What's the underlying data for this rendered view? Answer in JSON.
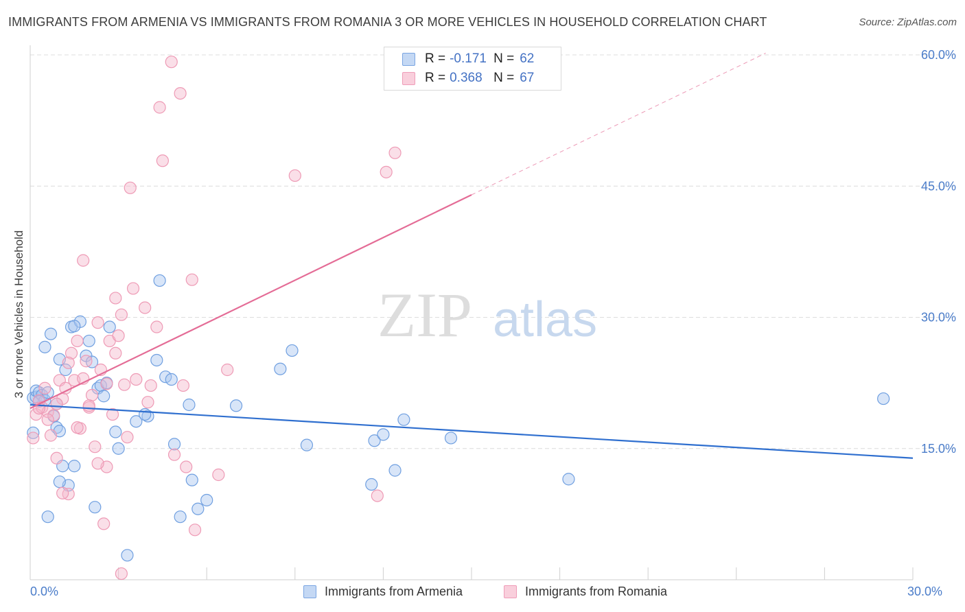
{
  "header": {
    "title": "IMMIGRANTS FROM ARMENIA VS IMMIGRANTS FROM ROMANIA 3 OR MORE VEHICLES IN HOUSEHOLD CORRELATION CHART",
    "source": "Source: ZipAtlas.com"
  },
  "legend": {
    "r_label": "R =",
    "n_label": "N =",
    "series": [
      {
        "name": "Immigrants from Armenia",
        "r": "-0.171",
        "n": "62"
      },
      {
        "name": "Immigrants from Romania",
        "r": "0.368",
        "n": "67"
      }
    ]
  },
  "watermark": {
    "zip": "ZIP",
    "atlas": "atlas"
  },
  "colors": {
    "armenia_fill": "#a9c6ef",
    "armenia_stroke": "#6f9fe0",
    "armenia_line": "#2f6fcf",
    "romania_fill": "#f5b8cb",
    "romania_stroke": "#ee9ab5",
    "romania_line": "#e46c96",
    "grid": "#dcdcdc",
    "tick_label": "#4a7cc9"
  },
  "chart_data": {
    "type": "scatter",
    "title": "IMMIGRANTS FROM ARMENIA VS IMMIGRANTS FROM ROMANIA 3 OR MORE VEHICLES IN HOUSEHOLD CORRELATION CHART",
    "xlabel": "",
    "ylabel": "3 or more Vehicles in Household",
    "xlim": [
      0,
      30
    ],
    "ylim": [
      0,
      60
    ],
    "x_tick_labels": [
      "0.0%",
      "30.0%"
    ],
    "y_ticks": [
      15,
      30,
      45,
      60
    ],
    "y_tick_labels": [
      "15.0%",
      "30.0%",
      "45.0%",
      "60.0%"
    ],
    "grid": true,
    "legend_position": "top-center",
    "series": [
      {
        "name": "Immigrants from Armenia",
        "points": [
          [
            0.1,
            20.8
          ],
          [
            0.2,
            20.9
          ],
          [
            0.2,
            21.6
          ],
          [
            0.3,
            21.4
          ],
          [
            0.4,
            21.1
          ],
          [
            0.5,
            20.5
          ],
          [
            0.5,
            26.6
          ],
          [
            0.6,
            21.4
          ],
          [
            0.7,
            28.1
          ],
          [
            0.8,
            18.7
          ],
          [
            0.9,
            17.4
          ],
          [
            0.9,
            20.1
          ],
          [
            1.0,
            17.0
          ],
          [
            1.0,
            25.2
          ],
          [
            1.1,
            13.0
          ],
          [
            1.2,
            24.0
          ],
          [
            1.3,
            10.8
          ],
          [
            1.4,
            28.9
          ],
          [
            1.5,
            13.0
          ],
          [
            1.7,
            29.5
          ],
          [
            1.9,
            25.6
          ],
          [
            2.0,
            27.3
          ],
          [
            2.1,
            24.9
          ],
          [
            2.2,
            8.3
          ],
          [
            2.3,
            21.9
          ],
          [
            2.4,
            22.2
          ],
          [
            2.6,
            22.5
          ],
          [
            2.7,
            28.9
          ],
          [
            2.9,
            16.9
          ],
          [
            3.0,
            15.0
          ],
          [
            3.3,
            2.8
          ],
          [
            3.6,
            18.1
          ],
          [
            4.0,
            18.7
          ],
          [
            4.3,
            25.1
          ],
          [
            4.4,
            34.2
          ],
          [
            4.6,
            23.2
          ],
          [
            4.8,
            22.9
          ],
          [
            4.9,
            15.5
          ],
          [
            5.1,
            7.2
          ],
          [
            5.4,
            20.0
          ],
          [
            5.5,
            11.4
          ],
          [
            5.7,
            8.1
          ],
          [
            6.0,
            9.1
          ],
          [
            7.0,
            19.9
          ],
          [
            8.5,
            24.1
          ],
          [
            8.9,
            26.2
          ],
          [
            9.4,
            15.4
          ],
          [
            11.6,
            10.9
          ],
          [
            11.7,
            15.9
          ],
          [
            12.0,
            16.6
          ],
          [
            12.4,
            12.5
          ],
          [
            12.7,
            18.3
          ],
          [
            14.3,
            16.2
          ],
          [
            18.3,
            11.5
          ],
          [
            29.0,
            20.7
          ],
          [
            0.1,
            16.8
          ],
          [
            0.3,
            20.4
          ],
          [
            0.6,
            7.2
          ],
          [
            1.0,
            11.2
          ],
          [
            1.5,
            29.0
          ],
          [
            2.5,
            21.0
          ],
          [
            3.9,
            18.9
          ]
        ]
      },
      {
        "name": "Immigrants from Romania",
        "points": [
          [
            0.1,
            16.2
          ],
          [
            0.2,
            18.9
          ],
          [
            0.3,
            20.5
          ],
          [
            0.4,
            19.7
          ],
          [
            0.5,
            21.9
          ],
          [
            0.6,
            19.2
          ],
          [
            0.7,
            16.5
          ],
          [
            0.8,
            18.8
          ],
          [
            0.9,
            13.9
          ],
          [
            1.0,
            22.8
          ],
          [
            1.1,
            20.7
          ],
          [
            1.2,
            21.9
          ],
          [
            1.3,
            9.8
          ],
          [
            1.4,
            25.9
          ],
          [
            1.5,
            22.8
          ],
          [
            1.6,
            27.3
          ],
          [
            1.7,
            17.3
          ],
          [
            1.8,
            36.5
          ],
          [
            1.9,
            25.0
          ],
          [
            2.0,
            19.7
          ],
          [
            2.1,
            21.1
          ],
          [
            2.2,
            15.2
          ],
          [
            2.3,
            29.4
          ],
          [
            2.4,
            24.0
          ],
          [
            2.5,
            6.4
          ],
          [
            2.6,
            12.9
          ],
          [
            2.7,
            27.3
          ],
          [
            2.8,
            18.9
          ],
          [
            2.9,
            32.2
          ],
          [
            3.0,
            27.9
          ],
          [
            3.1,
            30.3
          ],
          [
            3.2,
            22.3
          ],
          [
            3.3,
            16.3
          ],
          [
            3.4,
            44.8
          ],
          [
            3.5,
            33.3
          ],
          [
            3.6,
            22.9
          ],
          [
            3.9,
            31.1
          ],
          [
            4.0,
            20.3
          ],
          [
            4.1,
            22.2
          ],
          [
            4.3,
            28.9
          ],
          [
            4.4,
            54.0
          ],
          [
            4.5,
            47.9
          ],
          [
            4.8,
            59.2
          ],
          [
            4.9,
            14.3
          ],
          [
            5.1,
            55.6
          ],
          [
            5.2,
            22.2
          ],
          [
            5.3,
            12.9
          ],
          [
            5.5,
            34.3
          ],
          [
            5.6,
            5.7
          ],
          [
            6.4,
            12.0
          ],
          [
            6.7,
            24.0
          ],
          [
            9.0,
            46.2
          ],
          [
            11.8,
            9.6
          ],
          [
            12.1,
            46.6
          ],
          [
            12.4,
            48.8
          ],
          [
            3.1,
            0.7
          ],
          [
            0.3,
            19.6
          ],
          [
            0.6,
            18.3
          ],
          [
            1.1,
            9.9
          ],
          [
            1.6,
            17.4
          ],
          [
            2.3,
            13.3
          ],
          [
            2.6,
            22.4
          ],
          [
            2.9,
            25.9
          ],
          [
            1.3,
            24.8
          ],
          [
            0.9,
            20.1
          ],
          [
            1.8,
            23.0
          ],
          [
            2.0,
            19.9
          ]
        ]
      }
    ],
    "trendlines": [
      {
        "series": "Immigrants from Armenia",
        "x": [
          0,
          30
        ],
        "y": [
          20.0,
          13.9
        ],
        "style": "solid"
      },
      {
        "series": "Immigrants from Romania",
        "x": [
          0,
          15
        ],
        "y": [
          19.6,
          44.0
        ],
        "style": "solid"
      },
      {
        "series": "Immigrants from Romania",
        "x": [
          15,
          25.0
        ],
        "y": [
          44.0,
          60.2
        ],
        "style": "dashed"
      }
    ]
  }
}
